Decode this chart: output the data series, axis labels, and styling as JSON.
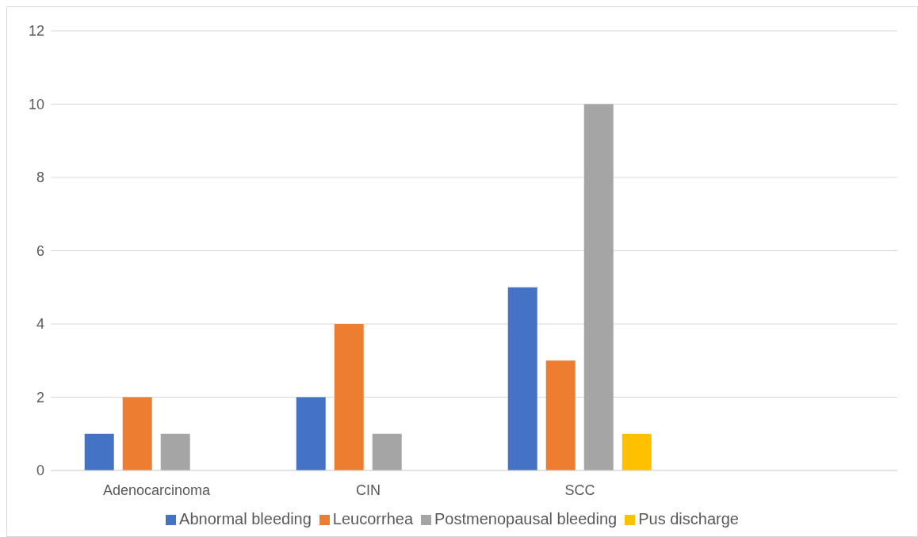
{
  "chart_data": {
    "type": "bar",
    "categories": [
      "Adenocarcinoma",
      "CIN",
      "SCC",
      null
    ],
    "series": [
      {
        "name": "Abnormal bleeding",
        "color": "#4472c4",
        "values": [
          1,
          2,
          5,
          null
        ]
      },
      {
        "name": "Leucorrhea",
        "color": "#ed7d31",
        "values": [
          2,
          4,
          3,
          null
        ]
      },
      {
        "name": "Postmenopausal bleeding",
        "color": "#a5a5a5",
        "values": [
          1,
          1,
          10,
          null
        ]
      },
      {
        "name": "Pus discharge",
        "color": "#ffc000",
        "values": [
          null,
          null,
          1,
          null
        ]
      }
    ],
    "ylim": [
      0,
      12
    ],
    "yticks": [
      0,
      2,
      4,
      6,
      8,
      10,
      12
    ],
    "grid": "y",
    "legend": "bottom"
  }
}
